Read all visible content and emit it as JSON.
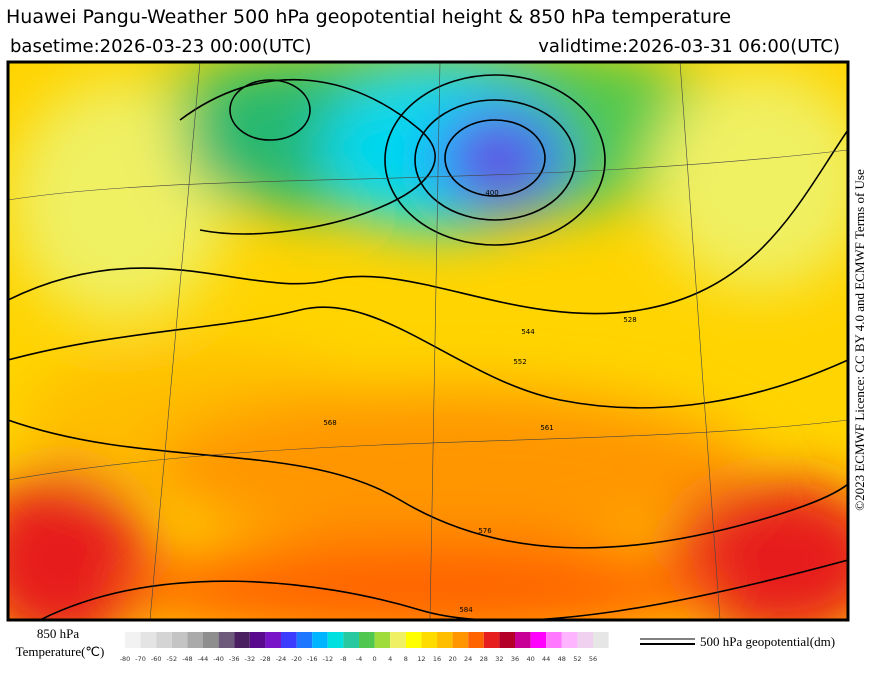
{
  "header": {
    "title": "Huawei Pangu-Weather 500 hPa geopotential height & 850 hPa temperature",
    "basetime": "basetime:2026-03-23 00:00(UTC)",
    "validtime": "validtime:2026-03-31 06:00(UTC)"
  },
  "license": "©2023 ECMWF Licence: CC BY 4.0 and ECMWF Terms of Use",
  "legend": {
    "temperature_title": "850 hPa",
    "temperature_unit": "Temperature(℃)",
    "contour_label": "500 hPa geopotential(dm)"
  },
  "colorbar": {
    "ticks": [
      -80,
      -70,
      -60,
      -52,
      -48,
      -44,
      -40,
      -36,
      -32,
      -28,
      -24,
      -20,
      -16,
      -12,
      -8,
      -4,
      0,
      4,
      8,
      12,
      16,
      20,
      24,
      28,
      32,
      36,
      40,
      44,
      48,
      52,
      56
    ],
    "colors": [
      "#f2f2f2",
      "#e4e4e4",
      "#d4d4d4",
      "#c4c4c4",
      "#aaaaaa",
      "#8e8e8e",
      "#6e5a7a",
      "#4b2060",
      "#5a0a8c",
      "#7a14c8",
      "#3c3cff",
      "#1e78ff",
      "#00b4ff",
      "#00e0e0",
      "#28c8a0",
      "#50c850",
      "#a0dc3c",
      "#f0f064",
      "#ffff00",
      "#ffdc00",
      "#ffbe00",
      "#ff9600",
      "#ff6400",
      "#e61e1e",
      "#b40028",
      "#c80096",
      "#ff00ff",
      "#ff78ff",
      "#ffb4ff",
      "#f0d2f0",
      "#e6e6e6"
    ]
  },
  "contour_labels": [
    "400",
    "528",
    "544",
    "552",
    "561",
    "568",
    "576",
    "584"
  ]
}
